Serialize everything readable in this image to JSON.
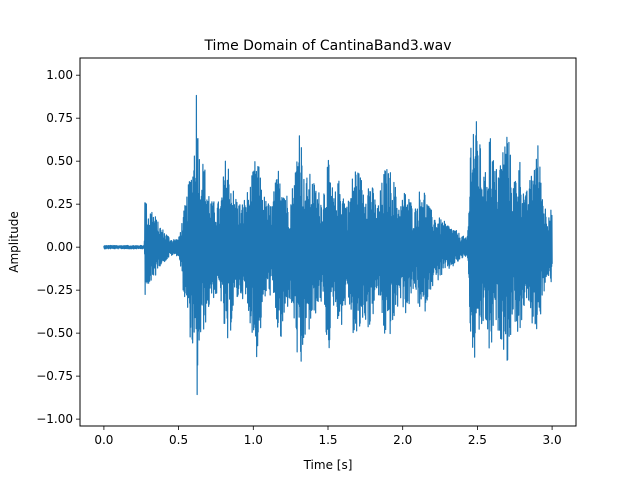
{
  "chart_data": {
    "type": "line",
    "title": "Time Domain of CantinaBand3.wav",
    "xlabel": "Time [s]",
    "ylabel": "Amplitude",
    "xlim": [
      -0.16,
      3.16
    ],
    "ylim": [
      -1.04,
      1.1
    ],
    "xticks": [
      0.0,
      0.5,
      1.0,
      1.5,
      2.0,
      2.5,
      3.0
    ],
    "xtick_labels": [
      "0.0",
      "0.5",
      "1.0",
      "1.5",
      "2.0",
      "2.5",
      "3.0"
    ],
    "yticks": [
      -1.0,
      -0.75,
      -0.5,
      -0.25,
      0.0,
      0.25,
      0.5,
      0.75,
      1.0
    ],
    "ytick_labels": [
      "−1.00",
      "−0.75",
      "−0.50",
      "−0.25",
      "0.00",
      "0.25",
      "0.50",
      "0.75",
      "1.00"
    ],
    "grid": false,
    "series": [
      {
        "color": "#1f77b4",
        "x": [
          0.0,
          0.27,
          0.275,
          0.29,
          0.32,
          0.36,
          0.4,
          0.45,
          0.5,
          0.55,
          0.6,
          0.62,
          0.64,
          0.67,
          0.72,
          0.78,
          0.82,
          0.87,
          0.92,
          0.98,
          1.02,
          1.08,
          1.12,
          1.18,
          1.24,
          1.28,
          1.31,
          1.34,
          1.38,
          1.42,
          1.46,
          1.5,
          1.54,
          1.58,
          1.63,
          1.68,
          1.74,
          1.78,
          1.83,
          1.88,
          1.93,
          1.98,
          2.02,
          2.08,
          2.13,
          2.18,
          2.23,
          2.28,
          2.33,
          2.38,
          2.43,
          2.44,
          2.46,
          2.5,
          2.55,
          2.58,
          2.62,
          2.66,
          2.7,
          2.74,
          2.78,
          2.82,
          2.86,
          2.9,
          2.95,
          3.0
        ],
        "upper": [
          0.01,
          0.01,
          0.34,
          0.22,
          0.24,
          0.15,
          0.1,
          0.05,
          0.05,
          0.28,
          0.55,
          1.0,
          0.56,
          0.5,
          0.27,
          0.27,
          0.57,
          0.33,
          0.25,
          0.37,
          0.55,
          0.28,
          0.25,
          0.53,
          0.25,
          0.46,
          0.8,
          0.4,
          0.43,
          0.36,
          0.3,
          0.52,
          0.3,
          0.42,
          0.25,
          0.5,
          0.38,
          0.42,
          0.24,
          0.47,
          0.44,
          0.25,
          0.35,
          0.22,
          0.4,
          0.23,
          0.18,
          0.15,
          0.12,
          0.08,
          0.05,
          0.17,
          0.82,
          0.72,
          0.4,
          0.73,
          0.45,
          0.55,
          0.73,
          0.38,
          0.55,
          0.3,
          0.42,
          0.65,
          0.25,
          0.22
        ],
        "lower": [
          -0.01,
          -0.01,
          -0.38,
          -0.2,
          -0.25,
          -0.12,
          -0.09,
          -0.05,
          -0.05,
          -0.4,
          -0.65,
          -0.95,
          -0.6,
          -0.48,
          -0.3,
          -0.3,
          -0.65,
          -0.35,
          -0.28,
          -0.45,
          -0.66,
          -0.3,
          -0.28,
          -0.6,
          -0.3,
          -0.5,
          -0.9,
          -0.55,
          -0.5,
          -0.38,
          -0.32,
          -0.65,
          -0.32,
          -0.5,
          -0.28,
          -0.6,
          -0.42,
          -0.5,
          -0.26,
          -0.55,
          -0.5,
          -0.3,
          -0.4,
          -0.25,
          -0.45,
          -0.25,
          -0.2,
          -0.15,
          -0.12,
          -0.08,
          -0.05,
          -0.2,
          -0.75,
          -0.6,
          -0.42,
          -0.68,
          -0.45,
          -0.55,
          -0.68,
          -0.4,
          -0.55,
          -0.3,
          -0.45,
          -0.5,
          -0.25,
          -0.2
        ]
      }
    ]
  }
}
